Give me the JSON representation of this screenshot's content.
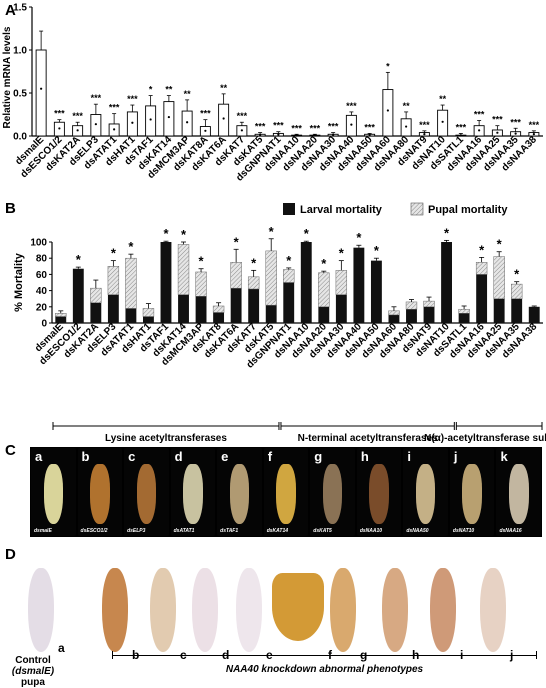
{
  "panel_a": {
    "label": "A",
    "chart_data": {
      "type": "bar",
      "ylabel": "Relative mRNA levels",
      "ylim": [
        0,
        1.5
      ],
      "yticks": [
        "0.0",
        "0.5",
        "1.0",
        "1.5"
      ],
      "categories": [
        "dsmalE",
        "dsESCO1/2",
        "dsKAT2A",
        "dsELP3",
        "dsATAT1",
        "dsHAT1",
        "dsTAF1",
        "dsKAT14",
        "dsMCM3AP",
        "dsKAT8A",
        "dsKAT6A",
        "dsKAT7",
        "dsKAT5",
        "dsGNPNAT1",
        "dsNAA10",
        "dsNAA20",
        "dsNAA30",
        "dsNAA40",
        "dsNAA50",
        "dsNAA60",
        "dsNAA80",
        "dsNAT9",
        "dsNAT10",
        "dsSATL1",
        "dsNAA16",
        "dsNAA25",
        "dsNAA35",
        "dsNAA38"
      ],
      "values": [
        1.0,
        0.16,
        0.12,
        0.25,
        0.14,
        0.28,
        0.35,
        0.4,
        0.29,
        0.11,
        0.37,
        0.12,
        0.02,
        0.03,
        0.01,
        0.01,
        0.02,
        0.24,
        0.02,
        0.54,
        0.2,
        0.04,
        0.3,
        0.01,
        0.12,
        0.07,
        0.05,
        0.04
      ],
      "errors": [
        0.22,
        0.03,
        0.04,
        0.12,
        0.12,
        0.08,
        0.12,
        0.07,
        0.13,
        0.08,
        0.12,
        0.04,
        0.02,
        0.02,
        0.01,
        0.01,
        0.02,
        0.04,
        0.01,
        0.2,
        0.08,
        0.02,
        0.06,
        0.02,
        0.06,
        0.05,
        0.04,
        0.02
      ],
      "significance": [
        "",
        "***",
        "***",
        "***",
        "***",
        "***",
        "*",
        "**",
        "**",
        "***",
        "**",
        "***",
        "***",
        "***",
        "***",
        "***",
        "***",
        "***",
        "***",
        "*",
        "**",
        "***",
        "**",
        "***",
        "***",
        "***",
        "***",
        "***"
      ]
    }
  },
  "panel_b": {
    "label": "B",
    "chart_data": {
      "type": "bar",
      "ylabel": "% Mortality",
      "ylim": [
        0,
        100
      ],
      "yticks": [
        "0",
        "20",
        "40",
        "60",
        "80",
        "100"
      ],
      "categories": [
        "dsmalE",
        "dsESCO1/2",
        "dsKAT2A",
        "dsELP3",
        "dsATAT1",
        "dsHAT1",
        "dsTAF1",
        "dsKAT14",
        "dsMCM3AP",
        "dsKAT8",
        "dsKAT6A",
        "dsKAT7",
        "dsKAT5",
        "dsGNPNAT1",
        "dsNAA10",
        "dsNAA20",
        "dsNAA30",
        "dsNAA40",
        "dsNAA50",
        "dsNAA60",
        "dsNAA80",
        "dsNAT9",
        "dsNAT10",
        "dsSATL1",
        "dsNAA16",
        "dsNAA25",
        "dsNAA35",
        "dsNAA38"
      ],
      "series": [
        {
          "name": "Larval mortality",
          "color": "#111111",
          "values": [
            8,
            67,
            25,
            35,
            18,
            8,
            100,
            35,
            33,
            13,
            43,
            42,
            22,
            50,
            100,
            20,
            35,
            93,
            77,
            10,
            17,
            20,
            100,
            12,
            60,
            30,
            30,
            20
          ]
        },
        {
          "name": "Pupal mortality",
          "color": "#cfcfcf",
          "values": [
            4,
            0,
            18,
            35,
            62,
            10,
            0,
            62,
            30,
            8,
            32,
            15,
            67,
            16,
            0,
            42,
            30,
            0,
            0,
            5,
            9,
            7,
            0,
            5,
            15,
            52,
            18,
            0
          ]
        }
      ],
      "errors": [
        3,
        2,
        10,
        7,
        5,
        6,
        1,
        3,
        4,
        4,
        16,
        8,
        15,
        2,
        1,
        2,
        12,
        3,
        3,
        5,
        3,
        5,
        2,
        4,
        6,
        6,
        3,
        1
      ],
      "significance": [
        "",
        "*",
        "",
        "*",
        "*",
        "",
        "*",
        "*",
        "*",
        "",
        "*",
        "*",
        "*",
        "*",
        "*",
        "*",
        "*",
        "*",
        "*",
        "",
        "",
        "",
        "*",
        "",
        "*",
        "*",
        "*",
        ""
      ],
      "groups": [
        {
          "label": "Lysine acetyltransferases",
          "from": 0,
          "to": 12
        },
        {
          "label": "N-terminal acetyltransferases",
          "from": 13,
          "to": 22
        },
        {
          "label": "N(α)-acetyltransferase subunits",
          "from": 23,
          "to": 27
        }
      ]
    }
  },
  "panel_c": {
    "label": "C",
    "items": [
      {
        "letter": "a",
        "caption": "dsmalE",
        "color": "#d9d49a"
      },
      {
        "letter": "b",
        "caption": "dsESCO1/2",
        "color": "#b0722e"
      },
      {
        "letter": "c",
        "caption": "dsELP3",
        "color": "#a36a32"
      },
      {
        "letter": "d",
        "caption": "dsATAT1",
        "color": "#c8c2a0"
      },
      {
        "letter": "e",
        "caption": "dsTAF1",
        "color": "#b09a72"
      },
      {
        "letter": "f",
        "caption": "dsKAT14",
        "color": "#d0a640"
      },
      {
        "letter": "g",
        "caption": "dsKAT5",
        "color": "#8a7255"
      },
      {
        "letter": "h",
        "caption": "dsNAA10",
        "color": "#7a4c2a"
      },
      {
        "letter": "i",
        "caption": "dsNAA50",
        "color": "#c4b086"
      },
      {
        "letter": "j",
        "caption": "dsNAT10",
        "color": "#b8a070"
      },
      {
        "letter": "k",
        "caption": "dsNAA16",
        "color": "#c2b6a0"
      }
    ]
  },
  "panel_d": {
    "label": "D",
    "control_text": [
      "Control",
      "(dsmalE)",
      "pupa"
    ],
    "caption": "NAA40 knockdown abnormal phenotypes",
    "items": [
      {
        "letter": "a",
        "color": "#e4dde6"
      },
      {
        "letter": "b",
        "color": "#c7874e"
      },
      {
        "letter": "c",
        "color": "#e2cbb0"
      },
      {
        "letter": "d",
        "color": "#ece0e6"
      },
      {
        "letter": "e",
        "color": "#eee6ec"
      },
      {
        "letter": "f",
        "color": "#d39a36"
      },
      {
        "letter": "g",
        "color": "#d9a96e"
      },
      {
        "letter": "h",
        "color": "#d7a983"
      },
      {
        "letter": "i",
        "color": "#cf9a78"
      },
      {
        "letter": "j",
        "color": "#e7d2c4"
      }
    ]
  }
}
